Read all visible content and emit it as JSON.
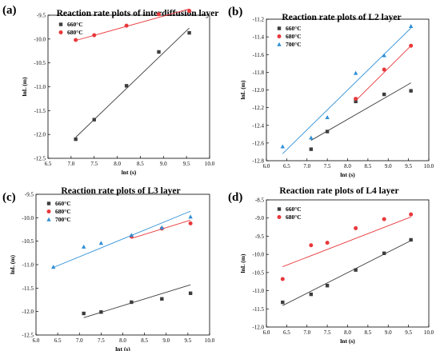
{
  "colors": {
    "660": "#3d3d3d",
    "680": "#e8383b",
    "700": "#2f8fd6"
  },
  "chart_data": [
    {
      "panel_label": "(a)",
      "type": "scatter",
      "title": "Reaction rate plots of interdiffusion layer",
      "xlabel": "lnt (s)",
      "ylabel": "lnL (m)",
      "xlim": [
        6.5,
        10.0
      ],
      "ylim": [
        -12.5,
        -9.5
      ],
      "xticks": [
        "6.5",
        "7.0",
        "7.5",
        "8.0",
        "8.5",
        "9.0",
        "9.5",
        "10.0"
      ],
      "yticks": [
        "-12.5",
        "-12.0",
        "-11.5",
        "-11.0",
        "-10.5",
        "-10.0",
        "-9.5"
      ],
      "legend_position": "top-left",
      "series": [
        {
          "name": "660°C",
          "marker": "square",
          "color": "660",
          "x": [
            7.1,
            7.5,
            8.2,
            8.9,
            9.56
          ],
          "y": [
            -12.1,
            -11.69,
            -10.98,
            -10.27,
            -9.87
          ],
          "fit": [
            [
              7.1,
              -12.06
            ],
            [
              9.56,
              -9.77
            ]
          ]
        },
        {
          "name": "680°C",
          "marker": "circle",
          "color": "680",
          "x": [
            7.1,
            7.5,
            8.2,
            8.9,
            9.56
          ],
          "y": [
            -10.02,
            -9.92,
            -9.72,
            -9.48,
            -9.41
          ],
          "fit": [
            [
              7.1,
              -10.03
            ],
            [
              9.56,
              -9.37
            ]
          ]
        }
      ]
    },
    {
      "panel_label": "(b)",
      "type": "scatter",
      "title": "Reaction rate plots of L2 layer",
      "xlabel": "lnt (s)",
      "ylabel": "lnL (m)",
      "xlim": [
        6.0,
        10.0
      ],
      "ylim": [
        -12.8,
        -11.2
      ],
      "xticks": [
        "6.0",
        "6.5",
        "7.0",
        "7.5",
        "8.0",
        "8.5",
        "9.0",
        "9.5",
        "10.0"
      ],
      "yticks": [
        "-12.8",
        "-12.6",
        "-12.4",
        "-12.2",
        "-12.0",
        "-11.8",
        "-11.6",
        "-11.4",
        "-11.2"
      ],
      "legend_position": "top-left",
      "series": [
        {
          "name": "660°C",
          "marker": "square",
          "color": "660",
          "x": [
            7.1,
            7.5,
            8.2,
            8.9,
            9.56
          ],
          "y": [
            -12.67,
            -12.47,
            -12.13,
            -12.05,
            -12.01
          ],
          "fit": [
            [
              7.1,
              -12.57
            ],
            [
              9.56,
              -11.92
            ]
          ]
        },
        {
          "name": "680°C",
          "marker": "circle",
          "color": "680",
          "x": [
            8.2,
            8.9,
            9.56
          ],
          "y": [
            -12.1,
            -11.77,
            -11.5
          ],
          "fit": [
            [
              8.2,
              -12.12
            ],
            [
              9.56,
              -11.5
            ]
          ]
        },
        {
          "name": "700°C",
          "marker": "triangle",
          "color": "700",
          "x": [
            6.4,
            7.1,
            7.5,
            8.2,
            8.9,
            9.56
          ],
          "y": [
            -12.64,
            -12.54,
            -12.31,
            -11.81,
            -11.61,
            -11.28
          ],
          "fit": [
            [
              6.4,
              -12.72
            ],
            [
              9.56,
              -11.3
            ]
          ]
        }
      ]
    },
    {
      "panel_label": "(c)",
      "type": "scatter",
      "title": "Reaction rate plots of L3 layer",
      "xlabel": "lnt (s)",
      "ylabel": "lnL (m)",
      "xlim": [
        6.0,
        10.0
      ],
      "ylim": [
        -12.5,
        -9.5
      ],
      "xticks": [
        "6.0",
        "6.5",
        "7.0",
        "7.5",
        "8.0",
        "8.5",
        "9.0",
        "9.5",
        "10.0"
      ],
      "yticks": [
        "-12.5",
        "-12.0",
        "-11.5",
        "-11.0",
        "-10.5",
        "-10.0",
        "-9.5"
      ],
      "legend_position": "top-left",
      "series": [
        {
          "name": "660°C",
          "marker": "square",
          "color": "660",
          "x": [
            7.1,
            7.5,
            8.2,
            8.9,
            9.56
          ],
          "y": [
            -12.04,
            -12.01,
            -11.8,
            -11.73,
            -11.61
          ],
          "fit": [
            [
              7.1,
              -12.13
            ],
            [
              9.56,
              -11.43
            ]
          ]
        },
        {
          "name": "680°C",
          "marker": "circle",
          "color": "680",
          "x": [
            8.2,
            8.9,
            9.56
          ],
          "y": [
            -10.4,
            -10.23,
            -10.12
          ],
          "fit": [
            [
              8.2,
              -10.44
            ],
            [
              9.56,
              -10.05
            ]
          ]
        },
        {
          "name": "700°C",
          "marker": "triangle",
          "color": "700",
          "x": [
            6.4,
            7.1,
            7.5,
            8.2,
            8.9,
            9.56
          ],
          "y": [
            -11.05,
            -10.62,
            -10.54,
            -10.37,
            -10.21,
            -9.98
          ],
          "fit": [
            [
              6.4,
              -11.06
            ],
            [
              9.56,
              -9.86
            ]
          ]
        }
      ]
    },
    {
      "panel_label": "(d)",
      "type": "scatter",
      "title": "Reaction rate plots of L4 layer",
      "xlabel": "lnt (s)",
      "ylabel": "lnL (m)",
      "xlim": [
        6.0,
        10.0
      ],
      "ylim": [
        -12.0,
        -8.5
      ],
      "xticks": [
        "6.0",
        "6.5",
        "7.0",
        "7.5",
        "8.0",
        "8.5",
        "9.0",
        "9.5",
        "10.0"
      ],
      "yticks": [
        "-12.0",
        "-11.5",
        "-11.0",
        "-10.5",
        "-10.0",
        "-9.5",
        "-9.0",
        "-8.5"
      ],
      "legend_position": "top-left",
      "series": [
        {
          "name": "660°C",
          "marker": "square",
          "color": "660",
          "x": [
            6.4,
            7.1,
            7.5,
            8.2,
            8.9,
            9.56
          ],
          "y": [
            -11.32,
            -11.1,
            -10.86,
            -10.43,
            -9.97,
            -9.6
          ],
          "fit": [
            [
              6.4,
              -11.41
            ],
            [
              9.56,
              -9.62
            ]
          ]
        },
        {
          "name": "680°C",
          "marker": "circle",
          "color": "680",
          "x": [
            6.4,
            7.1,
            7.5,
            8.2,
            8.9,
            9.56
          ],
          "y": [
            -10.68,
            -9.75,
            -9.68,
            -9.28,
            -9.03,
            -8.9
          ],
          "fit": [
            [
              6.4,
              -10.34
            ],
            [
              9.56,
              -8.97
            ]
          ]
        }
      ]
    }
  ]
}
